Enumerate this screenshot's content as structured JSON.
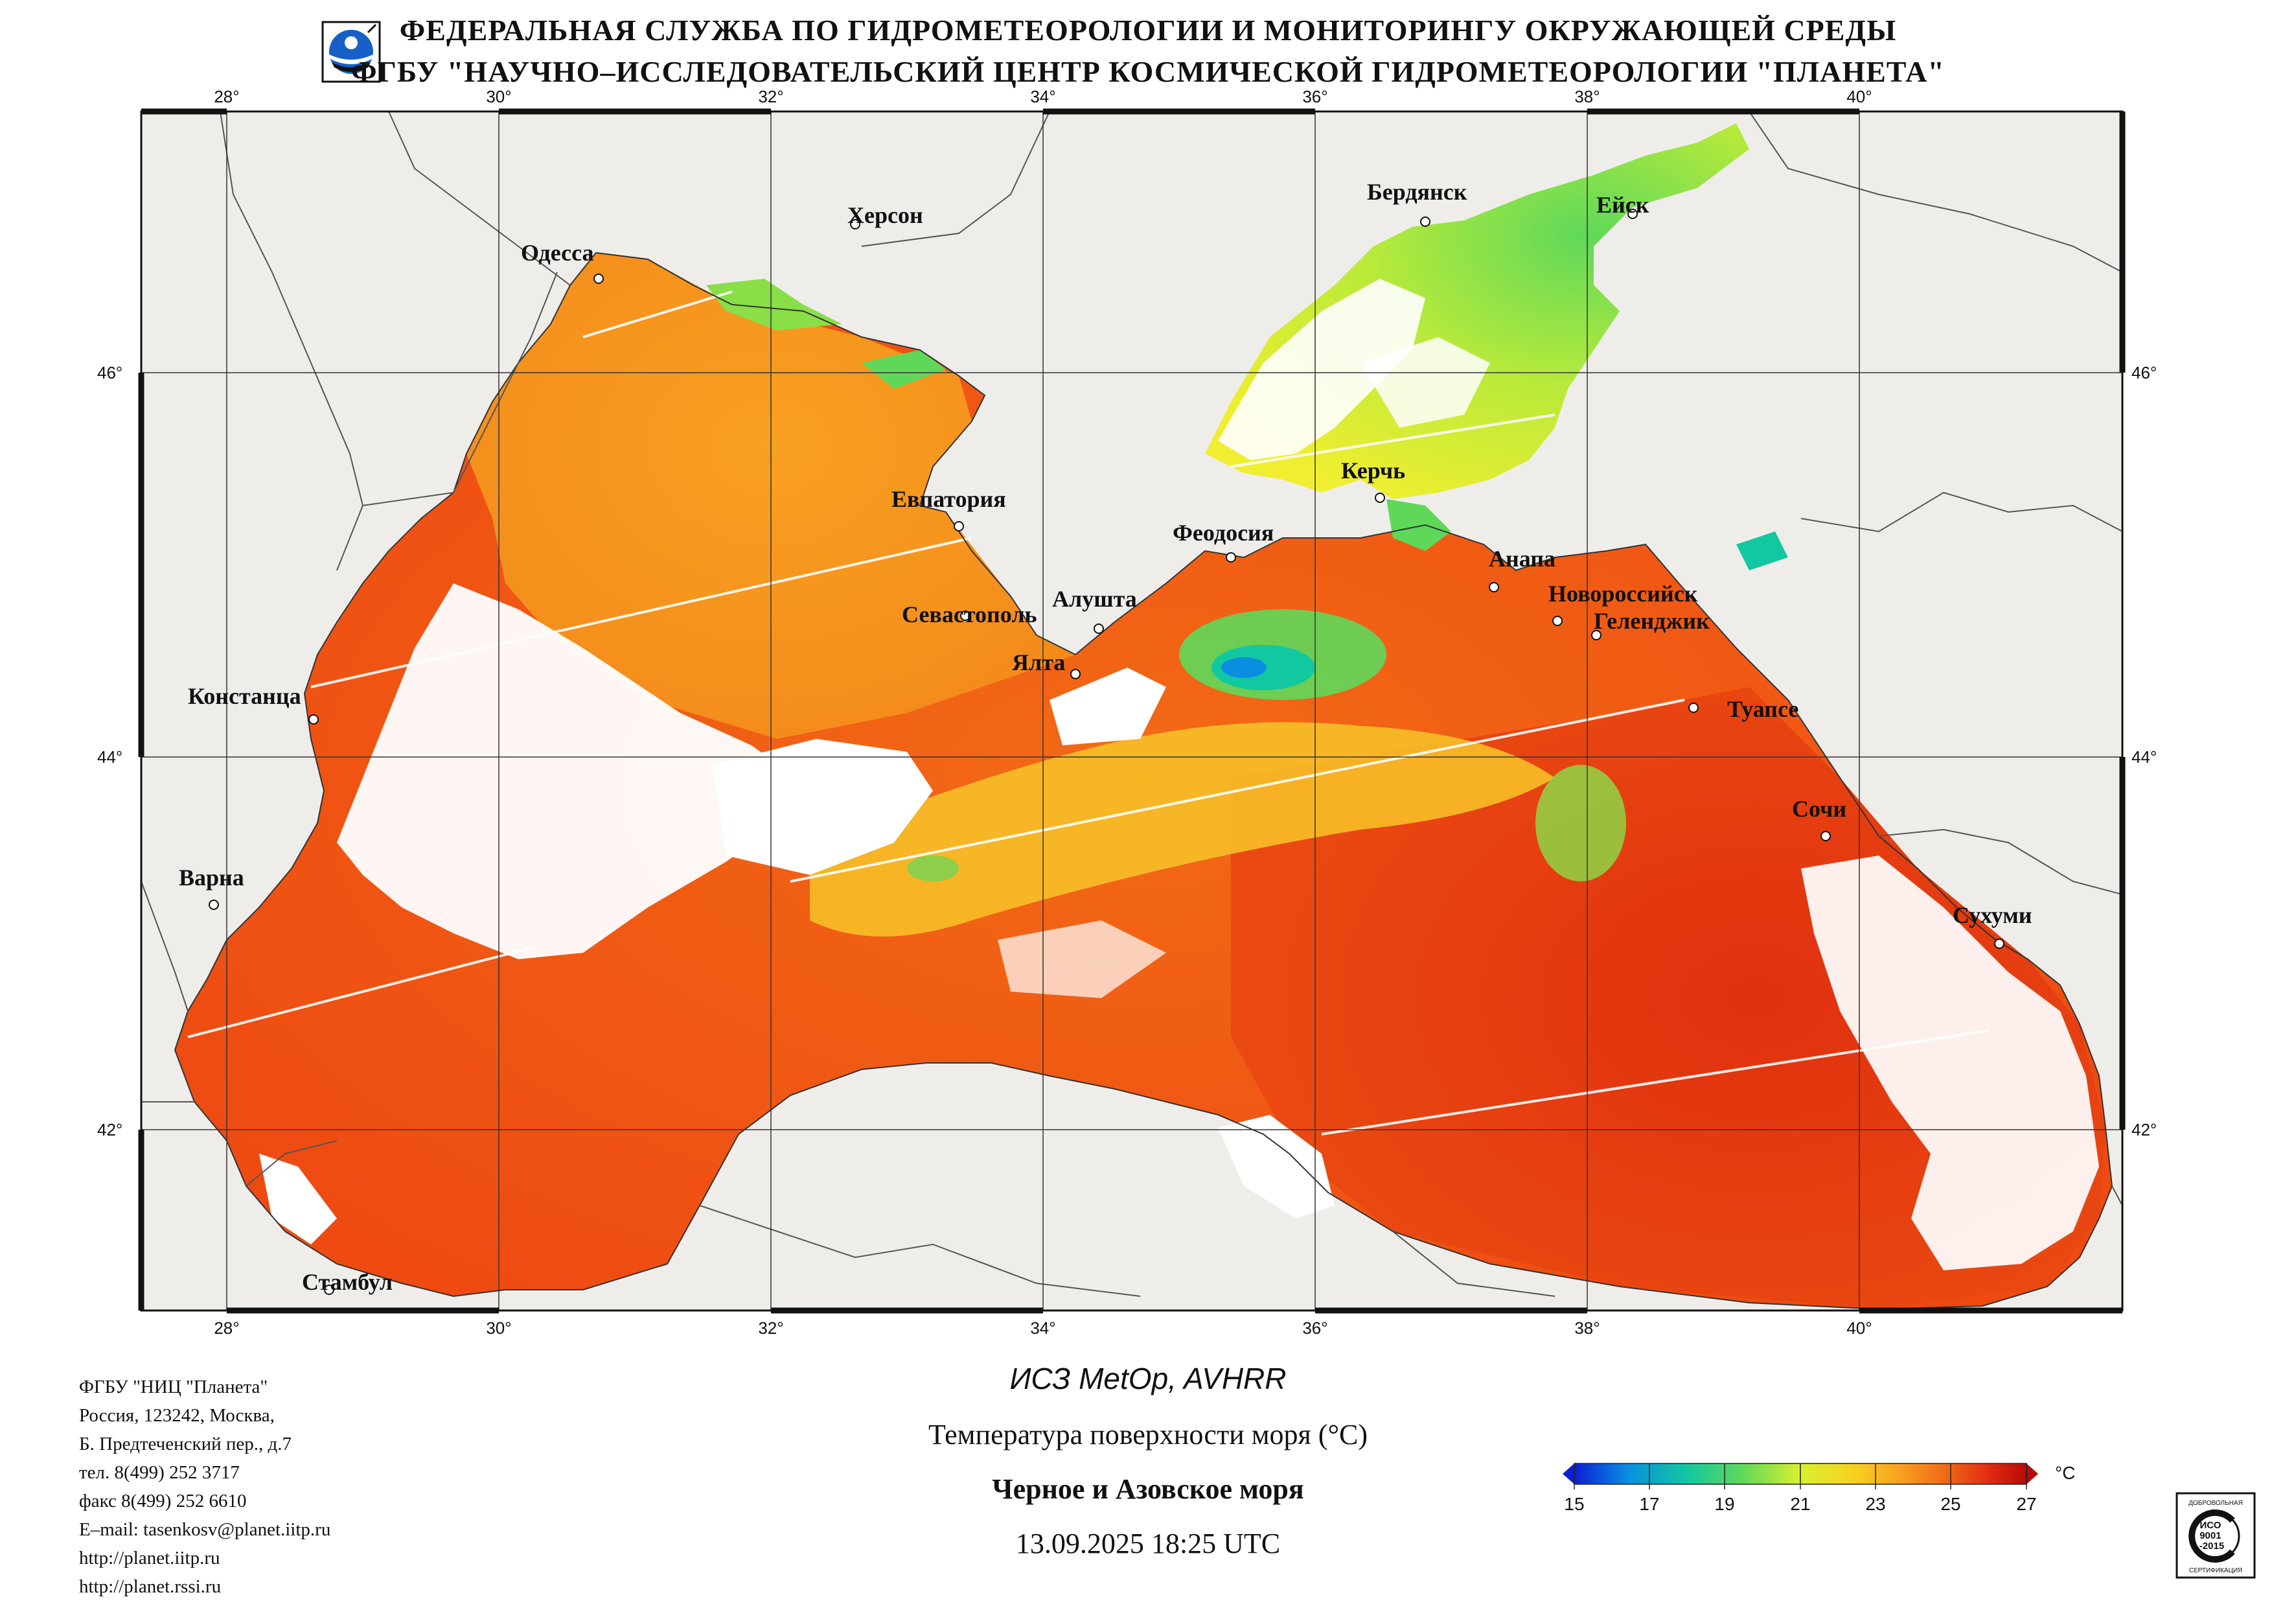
{
  "header": {
    "line1": "ФЕДЕРАЛЬНАЯ СЛУЖБА ПО ГИДРОМЕТЕОРОЛОГИИ И МОНИТОРИНГУ ОКРУЖАЮЩЕЙ СРЕДЫ",
    "line2": "ФГБУ \"НАУЧНО–ИССЛЕДОВАТЕЛЬСКИЙ ЦЕНТР КОСМИЧЕСКОЙ ГИДРОМЕТЕОРОЛОГИИ \"ПЛАНЕТА\""
  },
  "logo_icon": "planeta-globe-logo-icon",
  "map": {
    "lon_labels": [
      "28°",
      "30°",
      "32°",
      "34°",
      "36°",
      "38°",
      "40°"
    ],
    "lat_labels": [
      "46°",
      "44°",
      "42°"
    ],
    "cities": [
      {
        "name": "Одесса"
      },
      {
        "name": "Херсон"
      },
      {
        "name": "Бердянск"
      },
      {
        "name": "Ейск"
      },
      {
        "name": "Евпатория"
      },
      {
        "name": "Керчь"
      },
      {
        "name": "Феодосия"
      },
      {
        "name": "Анапа"
      },
      {
        "name": "Новороссийск"
      },
      {
        "name": "Геленджик"
      },
      {
        "name": "Севастополь"
      },
      {
        "name": "Алушта"
      },
      {
        "name": "Ялта"
      },
      {
        "name": "Констанца"
      },
      {
        "name": "Туапсе"
      },
      {
        "name": "Сочи"
      },
      {
        "name": "Варна"
      },
      {
        "name": "Сухуми"
      },
      {
        "name": "Стамбул"
      }
    ]
  },
  "contact": [
    "ФГБУ \"НИЦ \"Планета\"",
    "Россия, 123242, Москва,",
    "Б. Предтеченский пер., д.7",
    "тел. 8(499) 252 3717",
    "факс 8(499) 252 6610",
    "E–mail: tasenkosv@planet.iitp.ru",
    "http://planet.iitp.ru",
    "http://planet.rssi.ru"
  ],
  "satellite": "ИСЗ MetOp, AVHRR",
  "product_title": "Температура поверхности моря (°С)",
  "region": "Черное и Азовское моря",
  "datetime": "13.09.2025 18:25 UTC",
  "colorbar": {
    "ticks": [
      "15",
      "17",
      "19",
      "21",
      "23",
      "25",
      "27"
    ],
    "unit": "°С",
    "min": 15,
    "max": 27,
    "colors": [
      "#0a1fd6",
      "#0a8fe0",
      "#12c8a0",
      "#5fd85a",
      "#d8f030",
      "#f8d020",
      "#f8a020",
      "#f06a18",
      "#e02a10",
      "#b80a0a"
    ]
  },
  "iso_badge": {
    "top": "ДОБРОВОЛЬНАЯ",
    "mid": "ИСО\n9001\n-2015",
    "bottom": "СЕРТИФИКАЦИЯ"
  }
}
